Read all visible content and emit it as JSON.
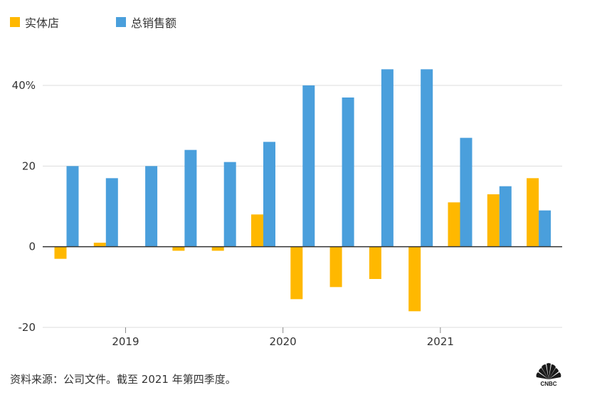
{
  "legend": {
    "physical_label": "实体店",
    "total_label": "总销售额"
  },
  "colors": {
    "physical": "#FFB800",
    "total": "#4A9FDC",
    "zero_line": "#333333",
    "grid": "#dddddd"
  },
  "source_note": "资料来源：公司文件。截至 2021 年第四季度。",
  "logo": {
    "icon": "cnbc-peacock-icon",
    "text": "CNBC"
  },
  "chart_data": {
    "type": "bar",
    "title": "",
    "xlabel": "",
    "ylabel": "",
    "ylim": [
      -20,
      44
    ],
    "y_ticks": [
      {
        "value": -20,
        "label": "-20"
      },
      {
        "value": 0,
        "label": "0"
      },
      {
        "value": 20,
        "label": "20"
      },
      {
        "value": 40,
        "label": "40%"
      }
    ],
    "x_labels": [
      {
        "label": "2019",
        "after_index": 1
      },
      {
        "label": "2020",
        "after_index": 5
      },
      {
        "label": "2021",
        "after_index": 9
      }
    ],
    "series": [
      {
        "name": "实体店",
        "values": [
          -3,
          1,
          0,
          -1,
          -1,
          8,
          -13,
          -10,
          -8,
          -16,
          11,
          13,
          17
        ]
      },
      {
        "name": "总销售额",
        "values": [
          20,
          17,
          20,
          24,
          21,
          26,
          40,
          37,
          44,
          44,
          27,
          15,
          9
        ]
      }
    ],
    "grid": true,
    "legend_position": "top-left"
  }
}
